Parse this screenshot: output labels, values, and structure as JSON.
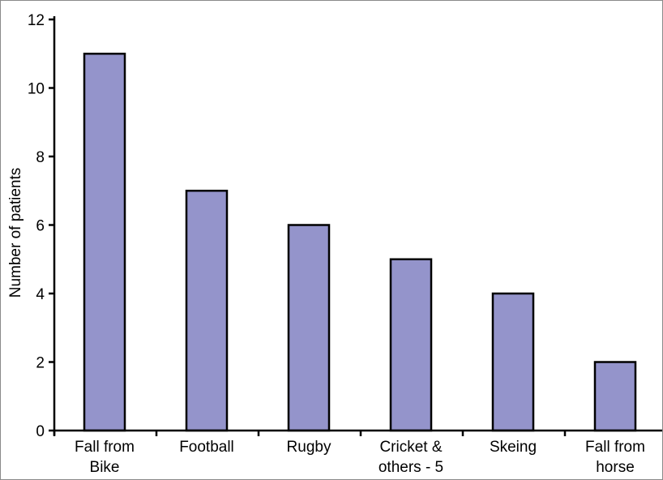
{
  "chart_data": {
    "type": "bar",
    "title": "",
    "xlabel": "",
    "ylabel": "Number of patients",
    "ylim": [
      0,
      12
    ],
    "yticks": [
      0,
      2,
      4,
      6,
      8,
      10,
      12
    ],
    "grid": false,
    "categories": [
      [
        "Fall from",
        "Bike"
      ],
      [
        "Football"
      ],
      [
        "Rugby"
      ],
      [
        "Cricket &",
        "others - 5"
      ],
      [
        "Skeing"
      ],
      [
        "Fall from",
        "horse"
      ]
    ],
    "values": [
      11,
      7,
      6,
      5,
      4,
      2
    ],
    "bar_color": "#9494cb",
    "bar_edge_color": "#000000"
  }
}
